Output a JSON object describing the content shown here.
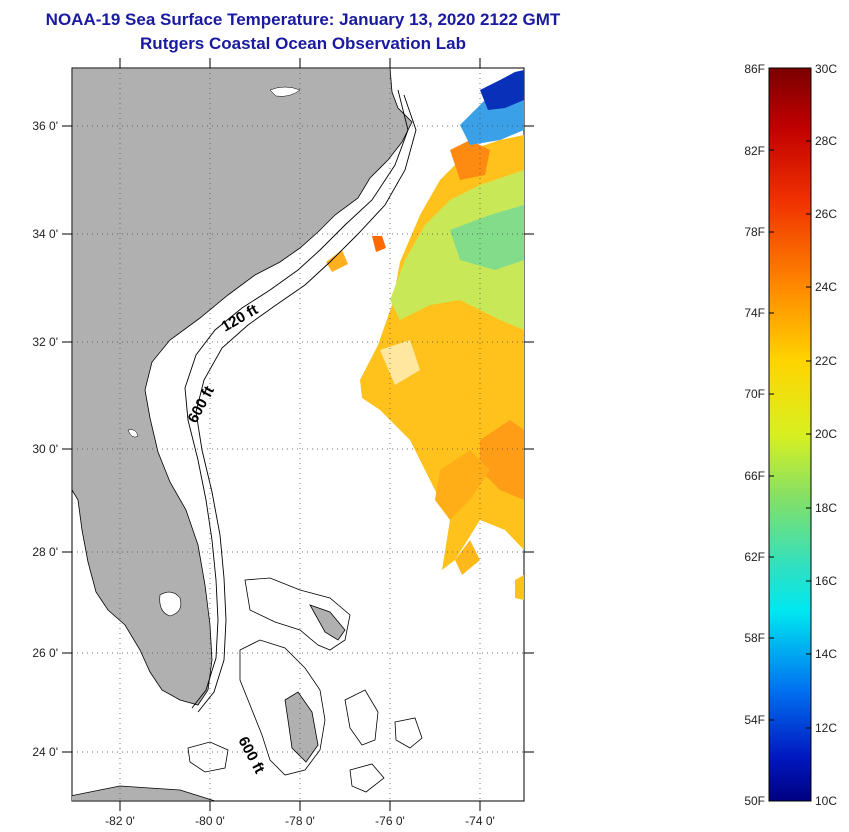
{
  "title": "NOAA-19 Sea Surface Temperature:  January 13, 2020 2122 GMT",
  "subtitle": "Rutgers Coastal Ocean Observation Lab",
  "lat_labels": [
    "36 0'",
    "34 0'",
    "32 0'",
    "30 0'",
    "28 0'",
    "26 0'",
    "24 0'"
  ],
  "lon_labels": [
    "-82 0'",
    "-80 0'",
    "-78 0'",
    "-76 0'",
    "-74 0'"
  ],
  "contour_labels": {
    "shallow": "120 ft",
    "deep": "600 ft",
    "bahamas": "600 ft"
  },
  "colorbar": {
    "f_labels": [
      "86F",
      "82F",
      "78F",
      "74F",
      "70F",
      "66F",
      "62F",
      "58F",
      "54F",
      "50F"
    ],
    "c_labels": [
      "30C",
      "28C",
      "26C",
      "24C",
      "22C",
      "20C",
      "18C",
      "16C",
      "14C",
      "12C",
      "10C"
    ]
  },
  "colors": {
    "land": "#b0b0b0",
    "title": "#1a1aa0"
  }
}
